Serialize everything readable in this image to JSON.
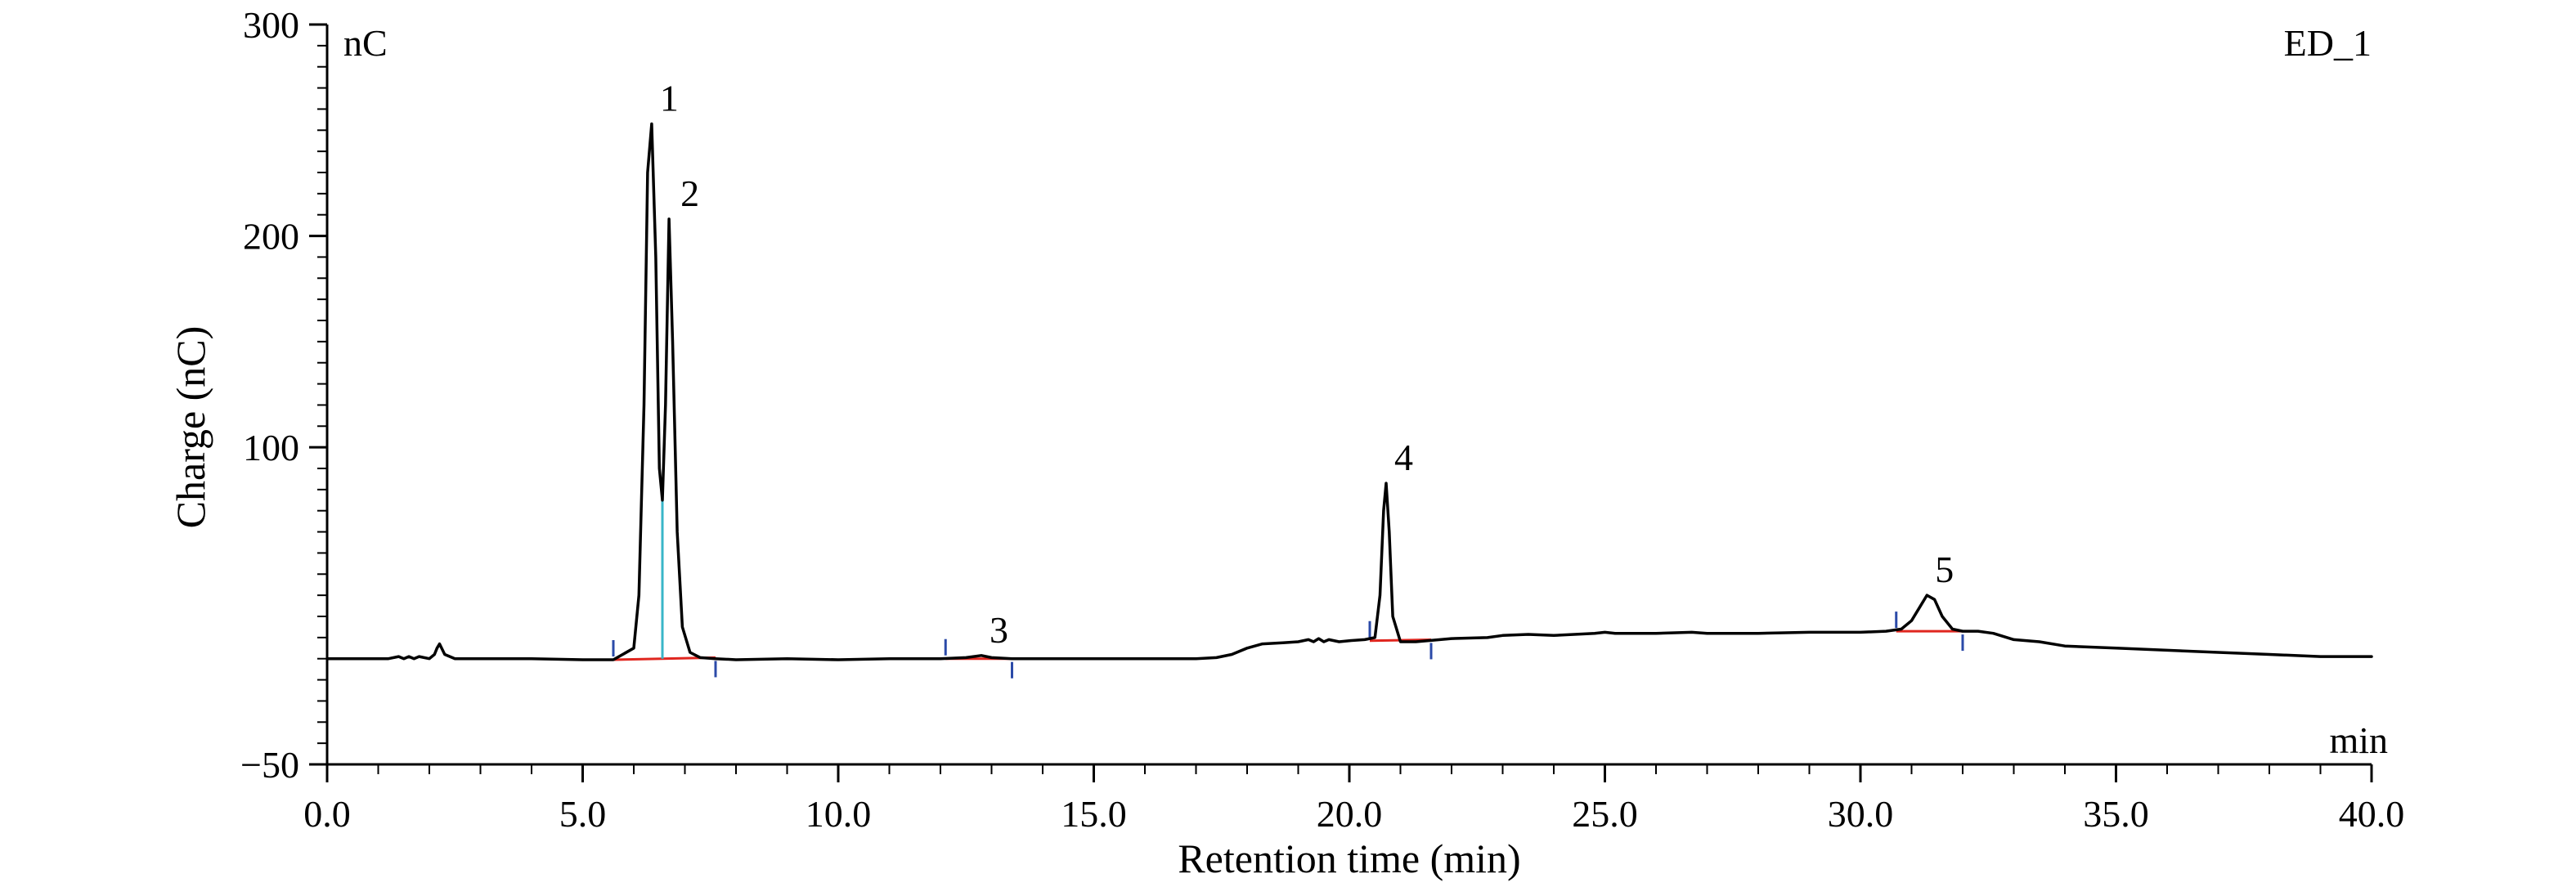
{
  "chart_data": {
    "type": "line",
    "corner_labels": {
      "y_unit": "nC",
      "channel": "ED_1",
      "x_unit": "min"
    },
    "xlabel": "Retention time (min)",
    "ylabel": "Charge (nC)",
    "xlim": [
      0,
      40
    ],
    "ylim": [
      -50,
      300
    ],
    "x_ticks": [
      0,
      5,
      10,
      15,
      20,
      25,
      30,
      35,
      40
    ],
    "x_tick_labels": [
      "0.0",
      "5.0",
      "10.0",
      "15.0",
      "20.0",
      "25.0",
      "30.0",
      "35.0",
      "40.0"
    ],
    "y_ticks": [
      -50,
      100,
      200,
      300
    ],
    "y_tick_labels": [
      "−50",
      "100",
      "200",
      "300"
    ],
    "grid": false,
    "colors": {
      "trace": "#000000",
      "baseline": "#e0261f",
      "marker": "#2b4aa8",
      "split": "#39b6c8"
    },
    "series": [
      {
        "x": [
          0,
          1.2,
          1.4,
          1.5,
          1.6,
          1.7,
          1.8,
          2.0,
          2.1,
          2.15,
          2.2,
          2.3,
          2.5,
          3.0,
          4.0,
          5.0,
          5.6,
          6.0,
          6.1,
          6.2,
          6.27,
          6.35,
          6.43,
          6.5,
          6.56,
          6.62,
          6.69,
          6.76,
          6.85,
          6.95,
          7.1,
          7.3,
          7.6,
          8.0,
          9.0,
          10.0,
          11.0,
          12.0,
          12.5,
          12.8,
          13.0,
          13.4,
          14.0,
          15.0,
          16.0,
          17.0,
          17.4,
          17.7,
          18.0,
          18.3,
          18.7,
          19.0,
          19.2,
          19.3,
          19.4,
          19.5,
          19.6,
          19.8,
          20.0,
          20.3,
          20.5,
          20.6,
          20.67,
          20.72,
          20.78,
          20.85,
          21.0,
          21.3,
          22.0,
          22.7,
          23.0,
          23.5,
          24.0,
          24.8,
          25.0,
          25.2,
          26.0,
          26.7,
          27.0,
          28.0,
          29.0,
          30.0,
          30.5,
          30.8,
          31.0,
          31.15,
          31.3,
          31.45,
          31.6,
          31.8,
          32.0,
          32.3,
          32.6,
          33.0,
          33.5,
          34.0,
          35.0,
          36.0,
          37.0,
          38.0,
          39.0,
          40.0
        ],
        "y": [
          0,
          0,
          1,
          0,
          1,
          0,
          1,
          0,
          2,
          5,
          7,
          2,
          0,
          0,
          0,
          -0.5,
          -0.5,
          5,
          30,
          120,
          230,
          253,
          190,
          90,
          75,
          120,
          208,
          150,
          60,
          15,
          3,
          0.5,
          0,
          -0.5,
          0,
          -0.5,
          0,
          0,
          0.5,
          1.5,
          0.5,
          0,
          0,
          0,
          0,
          0,
          0.5,
          2,
          5,
          7,
          7.5,
          8,
          9,
          8,
          9.5,
          8,
          9,
          8,
          8.5,
          9,
          10,
          30,
          70,
          83,
          60,
          20,
          8,
          8,
          9.5,
          10,
          11,
          11.5,
          11,
          12,
          12.5,
          12,
          12,
          12.5,
          12,
          12,
          12.5,
          12.5,
          13,
          14,
          18,
          24,
          30,
          28,
          20,
          14,
          13,
          13,
          12,
          9,
          8,
          6,
          5,
          4,
          3,
          2,
          1,
          1
        ]
      }
    ],
    "peaks": [
      {
        "label": "1",
        "x": 6.35,
        "y": 253
      },
      {
        "label": "2",
        "x": 6.69,
        "y": 208
      },
      {
        "label": "3",
        "x": 12.8,
        "y": 1.5
      },
      {
        "label": "4",
        "x": 20.72,
        "y": 83
      },
      {
        "label": "5",
        "x": 31.3,
        "y": 30
      }
    ],
    "integration_baselines": [
      {
        "x": [
          5.6,
          7.6
        ],
        "y": [
          -0.5,
          0.5
        ]
      },
      {
        "x": [
          12.1,
          13.4
        ],
        "y": [
          0,
          0
        ]
      },
      {
        "x": [
          20.4,
          21.6
        ],
        "y": [
          8.5,
          9
        ]
      },
      {
        "x": [
          30.7,
          32.0
        ],
        "y": [
          13,
          13
        ]
      }
    ],
    "integration_markers": [
      {
        "x": 5.6,
        "side": "up"
      },
      {
        "x": 7.6,
        "side": "down"
      },
      {
        "x": 12.1,
        "side": "up"
      },
      {
        "x": 13.4,
        "side": "down"
      },
      {
        "x": 20.4,
        "side": "up"
      },
      {
        "x": 21.6,
        "side": "down"
      },
      {
        "x": 30.7,
        "side": "up"
      },
      {
        "x": 32.0,
        "side": "down"
      }
    ],
    "split_line": {
      "x": 6.56,
      "y_top": 75
    }
  }
}
